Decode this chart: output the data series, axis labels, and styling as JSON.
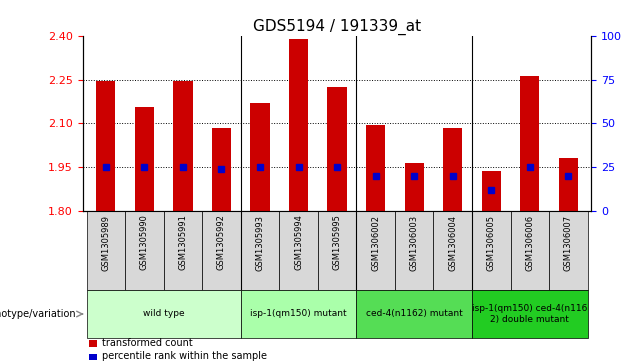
{
  "title": "GDS5194 / 191339_at",
  "samples": [
    "GSM1305989",
    "GSM1305990",
    "GSM1305991",
    "GSM1305992",
    "GSM1305993",
    "GSM1305994",
    "GSM1305995",
    "GSM1306002",
    "GSM1306003",
    "GSM1306004",
    "GSM1306005",
    "GSM1306006",
    "GSM1306007"
  ],
  "transformed_counts": [
    2.245,
    2.155,
    2.245,
    2.085,
    2.17,
    2.39,
    2.225,
    2.095,
    1.965,
    2.085,
    1.935,
    2.265,
    1.98
  ],
  "percentile_ranks": [
    25,
    25,
    25,
    24,
    25,
    25,
    25,
    20,
    20,
    20,
    12,
    25,
    20
  ],
  "ymin": 1.8,
  "ymax": 2.4,
  "yticks": [
    1.8,
    1.95,
    2.1,
    2.25,
    2.4
  ],
  "right_yticks": [
    0,
    25,
    50,
    75,
    100
  ],
  "bar_color": "#cc0000",
  "percentile_color": "#0000cc",
  "groups": [
    {
      "label": "wild type",
      "start": 0,
      "end": 3,
      "color": "#ccffcc"
    },
    {
      "label": "isp-1(qm150) mutant",
      "start": 4,
      "end": 6,
      "color": "#aaffaa"
    },
    {
      "label": "ced-4(n1162) mutant",
      "start": 7,
      "end": 9,
      "color": "#55dd55"
    },
    {
      "label": "isp-1(qm150) ced-4(n116\n2) double mutant",
      "start": 10,
      "end": 12,
      "color": "#22cc22"
    }
  ],
  "group_dividers": [
    3.5,
    6.5,
    9.5
  ],
  "xlabel_genotype": "genotype/variation",
  "legend_items": [
    {
      "label": "transformed count",
      "color": "#cc0000"
    },
    {
      "label": "percentile rank within the sample",
      "color": "#0000cc"
    }
  ],
  "title_fontsize": 11,
  "tick_fontsize": 8,
  "bar_width": 0.5,
  "sample_bg_color": "#d8d8d8",
  "chart_bg_color": "#ffffff"
}
